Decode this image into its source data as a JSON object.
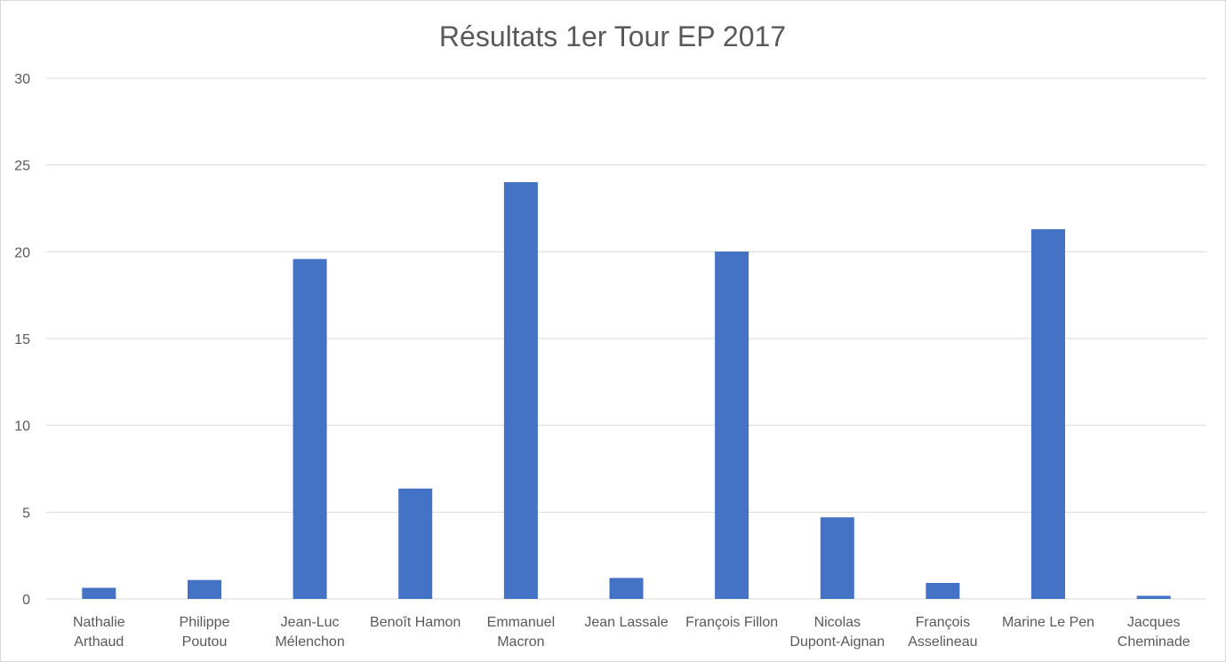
{
  "chart_data": {
    "type": "bar",
    "title": "Résultats 1er Tour EP 2017",
    "xlabel": "",
    "ylabel": "",
    "categories": [
      [
        "Nathalie",
        "Arthaud"
      ],
      [
        "Philippe",
        "Poutou"
      ],
      [
        "Jean-Luc",
        "Mélenchon"
      ],
      [
        "Benoît Hamon"
      ],
      [
        "Emmanuel",
        "Macron"
      ],
      [
        "Jean Lassale"
      ],
      [
        "François Fillon"
      ],
      [
        "Nicolas",
        "Dupont-Aignan"
      ],
      [
        "François",
        "Asselineau"
      ],
      [
        "Marine Le Pen"
      ],
      [
        "Jacques",
        "Cheminade"
      ]
    ],
    "values": [
      0.64,
      1.09,
      19.58,
      6.36,
      24.01,
      1.21,
      20.01,
      4.7,
      0.92,
      21.3,
      0.18
    ],
    "ylim": [
      0,
      30
    ],
    "yticks": [
      "0",
      "5",
      "10",
      "15",
      "20",
      "25",
      "30"
    ],
    "grid": true,
    "legend": "none",
    "bar_color": "#4472c4",
    "grid_color": "#d9d9d9",
    "text_color": "#595959"
  }
}
